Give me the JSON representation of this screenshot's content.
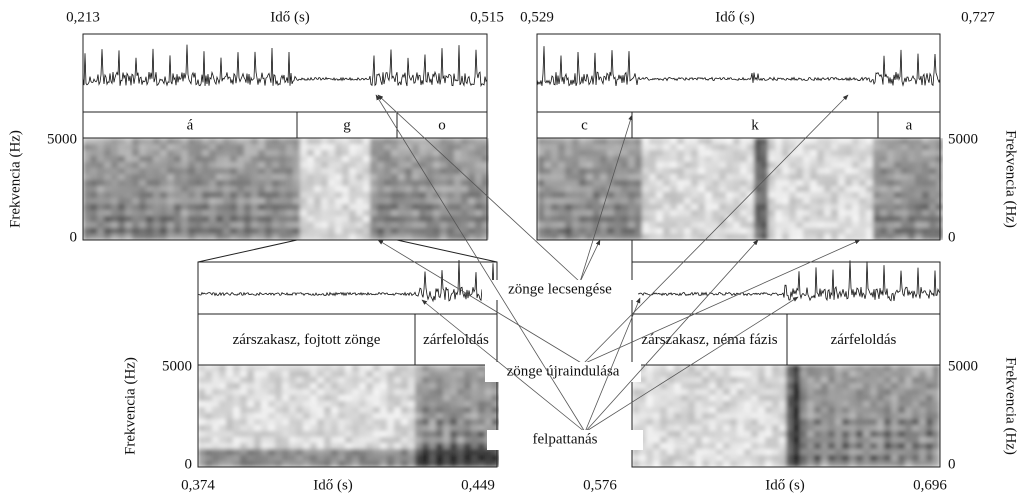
{
  "panels": [
    {
      "time_start": "0,213",
      "time_end": "0,515",
      "time_label": "Idő (s)",
      "freq_label": "Frekvencia (Hz)",
      "freq_max": "5000",
      "freq_min": "0",
      "segments": [
        "á",
        "g",
        "o"
      ]
    },
    {
      "time_start": "0,529",
      "time_end": "0,727",
      "time_label": "Idő (s)",
      "freq_label": "Frekvencia (Hz)",
      "freq_max": "5000",
      "freq_min": "0",
      "segments": [
        "c",
        "k",
        "a"
      ]
    },
    {
      "time_start": "0,374",
      "time_end": "0,449",
      "time_label": "Idő (s)",
      "freq_label": "Frekvencia (Hz)",
      "freq_max": "5000",
      "freq_min": "0",
      "segments": [
        "zárszakasz, fojtott zönge",
        "zárfeloldás"
      ]
    },
    {
      "time_start": "0,576",
      "time_end": "0,696",
      "time_label": "Idő (s)",
      "freq_label": "Frekvencia (Hz)",
      "freq_max": "5000",
      "freq_min": "0",
      "segments": [
        "zárszakasz, néma fázis",
        "zárfeloldás"
      ]
    }
  ],
  "annotations": [
    "zönge lecsengése",
    "zönge újraindulása",
    "felpattanás"
  ]
}
